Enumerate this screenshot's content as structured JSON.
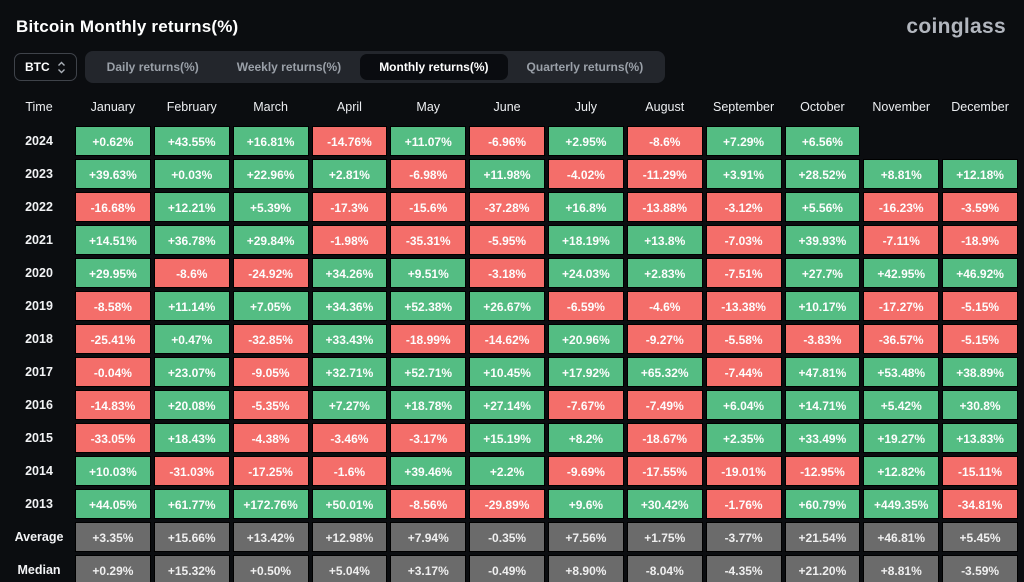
{
  "header": {
    "title": "Bitcoin Monthly returns(%)",
    "logo": "coinglass"
  },
  "controls": {
    "symbol_selector": {
      "value": "BTC",
      "icon": "up-down-chevron-icon"
    },
    "tabs": [
      {
        "label": "Daily returns(%)",
        "active": false
      },
      {
        "label": "Weekly returns(%)",
        "active": false
      },
      {
        "label": "Monthly returns(%)",
        "active": true
      },
      {
        "label": "Quarterly returns(%)",
        "active": false
      }
    ]
  },
  "table": {
    "columns": [
      "Time",
      "January",
      "February",
      "March",
      "April",
      "May",
      "June",
      "July",
      "August",
      "September",
      "October",
      "November",
      "December"
    ],
    "rows": [
      {
        "label": "2024",
        "type": "year",
        "values": [
          "+0.62%",
          "+43.55%",
          "+16.81%",
          "-14.76%",
          "+11.07%",
          "-6.96%",
          "+2.95%",
          "-8.6%",
          "+7.29%",
          "+6.56%",
          null,
          null
        ]
      },
      {
        "label": "2023",
        "type": "year",
        "values": [
          "+39.63%",
          "+0.03%",
          "+22.96%",
          "+2.81%",
          "-6.98%",
          "+11.98%",
          "-4.02%",
          "-11.29%",
          "+3.91%",
          "+28.52%",
          "+8.81%",
          "+12.18%"
        ]
      },
      {
        "label": "2022",
        "type": "year",
        "values": [
          "-16.68%",
          "+12.21%",
          "+5.39%",
          "-17.3%",
          "-15.6%",
          "-37.28%",
          "+16.8%",
          "-13.88%",
          "-3.12%",
          "+5.56%",
          "-16.23%",
          "-3.59%"
        ]
      },
      {
        "label": "2021",
        "type": "year",
        "values": [
          "+14.51%",
          "+36.78%",
          "+29.84%",
          "-1.98%",
          "-35.31%",
          "-5.95%",
          "+18.19%",
          "+13.8%",
          "-7.03%",
          "+39.93%",
          "-7.11%",
          "-18.9%"
        ]
      },
      {
        "label": "2020",
        "type": "year",
        "values": [
          "+29.95%",
          "-8.6%",
          "-24.92%",
          "+34.26%",
          "+9.51%",
          "-3.18%",
          "+24.03%",
          "+2.83%",
          "-7.51%",
          "+27.7%",
          "+42.95%",
          "+46.92%"
        ]
      },
      {
        "label": "2019",
        "type": "year",
        "values": [
          "-8.58%",
          "+11.14%",
          "+7.05%",
          "+34.36%",
          "+52.38%",
          "+26.67%",
          "-6.59%",
          "-4.6%",
          "-13.38%",
          "+10.17%",
          "-17.27%",
          "-5.15%"
        ]
      },
      {
        "label": "2018",
        "type": "year",
        "values": [
          "-25.41%",
          "+0.47%",
          "-32.85%",
          "+33.43%",
          "-18.99%",
          "-14.62%",
          "+20.96%",
          "-9.27%",
          "-5.58%",
          "-3.83%",
          "-36.57%",
          "-5.15%"
        ]
      },
      {
        "label": "2017",
        "type": "year",
        "values": [
          "-0.04%",
          "+23.07%",
          "-9.05%",
          "+32.71%",
          "+52.71%",
          "+10.45%",
          "+17.92%",
          "+65.32%",
          "-7.44%",
          "+47.81%",
          "+53.48%",
          "+38.89%"
        ]
      },
      {
        "label": "2016",
        "type": "year",
        "values": [
          "-14.83%",
          "+20.08%",
          "-5.35%",
          "+7.27%",
          "+18.78%",
          "+27.14%",
          "-7.67%",
          "-7.49%",
          "+6.04%",
          "+14.71%",
          "+5.42%",
          "+30.8%"
        ]
      },
      {
        "label": "2015",
        "type": "year",
        "values": [
          "-33.05%",
          "+18.43%",
          "-4.38%",
          "-3.46%",
          "-3.17%",
          "+15.19%",
          "+8.2%",
          "-18.67%",
          "+2.35%",
          "+33.49%",
          "+19.27%",
          "+13.83%"
        ]
      },
      {
        "label": "2014",
        "type": "year",
        "values": [
          "+10.03%",
          "-31.03%",
          "-17.25%",
          "-1.6%",
          "+39.46%",
          "+2.2%",
          "-9.69%",
          "-17.55%",
          "-19.01%",
          "-12.95%",
          "+12.82%",
          "-15.11%"
        ]
      },
      {
        "label": "2013",
        "type": "year",
        "values": [
          "+44.05%",
          "+61.77%",
          "+172.76%",
          "+50.01%",
          "-8.56%",
          "-29.89%",
          "+9.6%",
          "+30.42%",
          "-1.76%",
          "+60.79%",
          "+449.35%",
          "-34.81%"
        ]
      },
      {
        "label": "Average",
        "type": "summary",
        "values": [
          "+3.35%",
          "+15.66%",
          "+13.42%",
          "+12.98%",
          "+7.94%",
          "-0.35%",
          "+7.56%",
          "+1.75%",
          "-3.77%",
          "+21.54%",
          "+46.81%",
          "+5.45%"
        ]
      },
      {
        "label": "Median",
        "type": "summary",
        "values": [
          "+0.29%",
          "+15.32%",
          "+0.50%",
          "+5.04%",
          "+3.17%",
          "-0.49%",
          "+8.90%",
          "-8.04%",
          "-4.35%",
          "+21.20%",
          "+8.81%",
          "-3.59%"
        ]
      }
    ]
  },
  "colors": {
    "positive": "#54bd83",
    "negative": "#f46e6a",
    "summary": "#6b6b6b",
    "background": "#0b0d10"
  }
}
